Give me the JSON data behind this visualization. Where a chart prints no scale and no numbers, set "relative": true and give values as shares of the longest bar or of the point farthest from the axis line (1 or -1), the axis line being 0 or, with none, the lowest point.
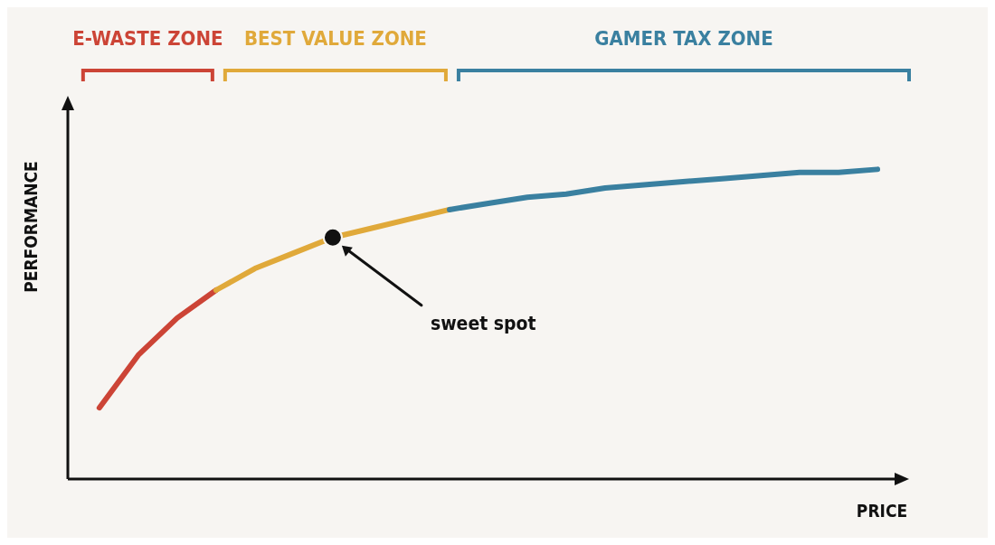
{
  "chart_data": {
    "type": "line",
    "xlabel": "PRICE",
    "ylabel": "PERFORMANCE",
    "relative": true,
    "categories": [
      null,
      null,
      null,
      null,
      null,
      null,
      null,
      null,
      null,
      null,
      null,
      null,
      null,
      null,
      null,
      null,
      null,
      null,
      null,
      null,
      null
    ],
    "series": [
      {
        "name": "E-WASTE ZONE",
        "color": "#cc4436",
        "values": [
          0.23,
          0.4,
          0.52,
          0.61,
          null,
          null,
          null,
          null,
          null,
          null,
          null,
          null,
          null,
          null,
          null,
          null,
          null,
          null,
          null,
          null,
          null
        ]
      },
      {
        "name": "BEST VALUE ZONE",
        "color": "#e0a93a",
        "values": [
          null,
          null,
          null,
          0.61,
          0.68,
          0.73,
          0.78,
          0.81,
          0.84,
          0.87,
          null,
          null,
          null,
          null,
          null,
          null,
          null,
          null,
          null,
          null,
          null
        ]
      },
      {
        "name": "GAMER TAX ZONE",
        "color": "#3a80a0",
        "values": [
          null,
          null,
          null,
          null,
          null,
          null,
          null,
          null,
          null,
          0.87,
          0.89,
          0.91,
          0.92,
          0.94,
          0.95,
          0.96,
          0.97,
          0.98,
          0.99,
          0.99,
          1
        ]
      }
    ],
    "annotations": [
      "sweet spot"
    ],
    "marker": "none",
    "line_style": "solid",
    "grid": false,
    "legend": false
  }
}
